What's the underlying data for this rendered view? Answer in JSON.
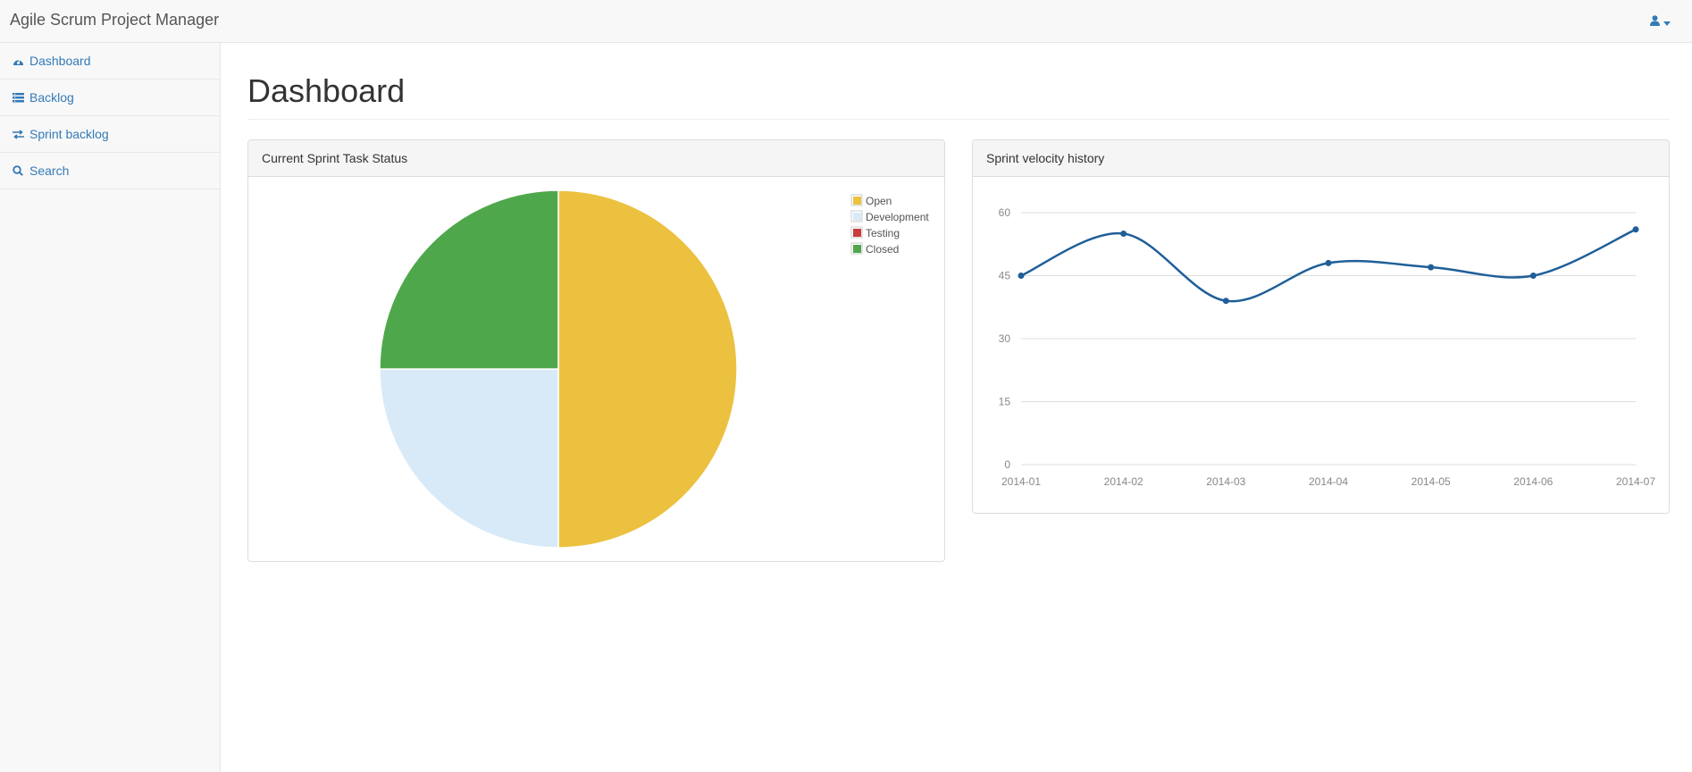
{
  "app": {
    "title": "Agile Scrum Project Manager"
  },
  "header": {
    "user_icon": "user-icon",
    "caret_icon": "caret-down-icon"
  },
  "sidebar": {
    "items": [
      {
        "label": "Dashboard",
        "icon": "dashboard-icon"
      },
      {
        "label": "Backlog",
        "icon": "backlog-list-icon"
      },
      {
        "label": "Sprint backlog",
        "icon": "exchange-arrows-icon"
      },
      {
        "label": "Search",
        "icon": "search-icon"
      }
    ]
  },
  "main": {
    "title": "Dashboard"
  },
  "panels": {
    "task_status": {
      "title": "Current Sprint Task Status"
    },
    "velocity": {
      "title": "Sprint velocity history"
    }
  },
  "colors": {
    "link": "#337ab7",
    "line": "#1f5f99"
  },
  "chart_data": [
    {
      "type": "pie",
      "title": "Current Sprint Task Status",
      "categories": [
        "Open",
        "Development",
        "Testing",
        "Closed"
      ],
      "values": [
        50,
        25,
        0,
        25
      ],
      "colors": [
        "#ebc13f",
        "#d8eaf8",
        "#cb3c3c",
        "#4ea84b"
      ],
      "legend": "top-right"
    },
    {
      "type": "line",
      "title": "Sprint velocity history",
      "x": [
        "2014-01",
        "2014-02",
        "2014-03",
        "2014-04",
        "2014-05",
        "2014-06",
        "2014-07"
      ],
      "series": [
        {
          "values": [
            45,
            55,
            39,
            48,
            47,
            45,
            56
          ]
        }
      ],
      "yticks": [
        0,
        15,
        30,
        45,
        60
      ],
      "ylim": [
        0,
        60
      ],
      "grid": true
    }
  ]
}
